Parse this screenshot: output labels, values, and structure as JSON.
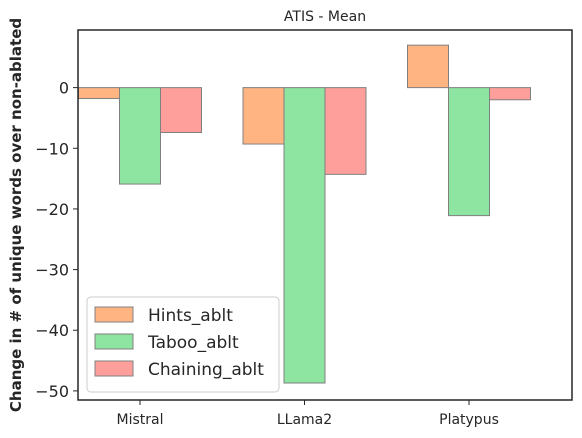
{
  "chart_data": {
    "type": "bar",
    "title": "ATIS - Mean",
    "xlabel": "",
    "ylabel": "Change in # of unique words over non-ablated",
    "categories": [
      "Mistral",
      "LLama2",
      "Platypus"
    ],
    "series": [
      {
        "name": "Hints_ablt",
        "color": "#ffb482",
        "values": [
          -1.8,
          -9.3,
          7.0
        ]
      },
      {
        "name": "Taboo_ablt",
        "color": "#8de5a1",
        "values": [
          -15.9,
          -48.7,
          -21.1
        ]
      },
      {
        "name": "Chaining_ablt",
        "color": "#ff9f9b",
        "values": [
          -7.4,
          -14.3,
          -2.0
        ]
      }
    ],
    "ylim": [
      -51.5,
      9.5
    ],
    "yticks": [
      0,
      -10,
      -20,
      -30,
      -40,
      -50
    ],
    "ytick_labels": [
      "0",
      "−10",
      "−20",
      "−30",
      "−40",
      "−50"
    ],
    "grid": false,
    "legend_position": "lower-left",
    "bar_edge_color": "#808080"
  }
}
